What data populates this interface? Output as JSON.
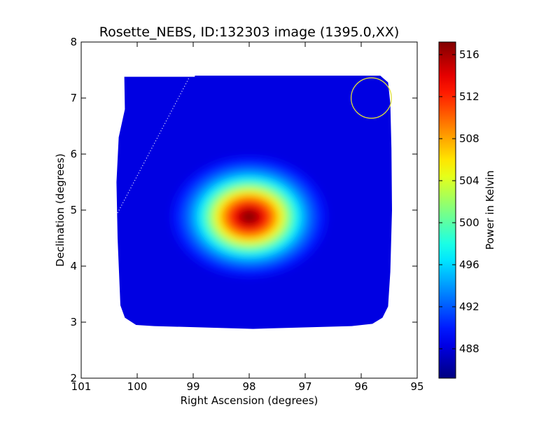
{
  "chart_data": {
    "type": "heatmap",
    "title": "Rosette_NEBS, ID:132303 image (1395.0,XX)",
    "xlabel": "Right Ascension (degrees)",
    "ylabel": "Declination (degrees)",
    "xlim": [
      101,
      95
    ],
    "ylim": [
      2,
      8
    ],
    "xticks": [
      101,
      100,
      99,
      98,
      97,
      96,
      95
    ],
    "yticks": [
      2,
      3,
      4,
      5,
      6,
      7,
      8
    ],
    "grid": false,
    "colorbar": {
      "label": "Power in Kelvin",
      "colormap": "jet",
      "range": [
        485.2,
        517.2
      ],
      "ticks": [
        488,
        492,
        496,
        500,
        504,
        508,
        512,
        516
      ]
    },
    "map": {
      "background_level": 488.3,
      "footprint": [
        [
          100.23,
          7.38
        ],
        [
          98.97,
          7.38
        ],
        [
          98.97,
          7.4
        ],
        [
          95.66,
          7.4
        ],
        [
          95.52,
          7.28
        ],
        [
          95.48,
          6.9
        ],
        [
          95.46,
          6.1
        ],
        [
          95.45,
          5.0
        ],
        [
          95.48,
          3.9
        ],
        [
          95.52,
          3.28
        ],
        [
          95.62,
          3.08
        ],
        [
          95.8,
          2.97
        ],
        [
          96.17,
          2.93
        ],
        [
          97.93,
          2.88
        ],
        [
          99.7,
          2.93
        ],
        [
          100.02,
          2.95
        ],
        [
          100.22,
          3.08
        ],
        [
          100.3,
          3.3
        ],
        [
          100.35,
          4.5
        ],
        [
          100.37,
          5.5
        ],
        [
          100.33,
          6.3
        ],
        [
          100.22,
          6.8
        ],
        [
          100.23,
          7.38
        ]
      ],
      "sources": [
        {
          "ra": 98.0,
          "dec": 4.88,
          "peak": 517.0,
          "sigma_ra": 0.58,
          "sigma_dec": 0.45
        }
      ]
    },
    "annotations": [
      {
        "type": "circle",
        "ra": 95.82,
        "dec": 7.0,
        "radius_deg": 0.36,
        "color": "#dede3c"
      },
      {
        "type": "dotted-line",
        "points": [
          [
            100.35,
            4.95
          ],
          [
            99.08,
            7.35
          ]
        ],
        "color": "#ffffff"
      }
    ]
  }
}
